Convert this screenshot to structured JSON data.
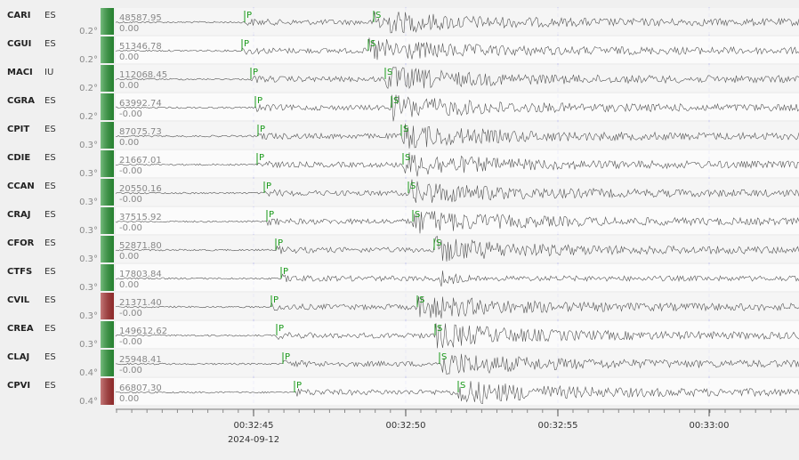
{
  "stations": [
    {
      "code": "CARI",
      "network": "ES",
      "distance": "0.2°",
      "max": "48587.95",
      "min": "0.00",
      "status_color": "#2e9a3a",
      "p": "P",
      "s": "S"
    },
    {
      "code": "CGUI",
      "network": "ES",
      "distance": "0.2°",
      "max": "51346.78",
      "min": "0.00",
      "status_color": "#2e9a3a",
      "p": "P",
      "s": "S"
    },
    {
      "code": "MACI",
      "network": "IU",
      "distance": "0.2°",
      "max": "112068.45",
      "min": "0.00",
      "status_color": "#2e9a3a",
      "p": "P",
      "s": "S"
    },
    {
      "code": "CGRA",
      "network": "ES",
      "distance": "0.2°",
      "max": "63992.74",
      "min": "-0.00",
      "status_color": "#2e9a3a",
      "p": "P",
      "s": "S"
    },
    {
      "code": "CPIT",
      "network": "ES",
      "distance": "0.3°",
      "max": "87075.73",
      "min": "0.00",
      "status_color": "#2e9a3a",
      "p": "P",
      "s": "S"
    },
    {
      "code": "CDIE",
      "network": "ES",
      "distance": "0.3°",
      "max": "21667.01",
      "min": "-0.00",
      "status_color": "#2e9a3a",
      "p": "P",
      "s": "S"
    },
    {
      "code": "CCAN",
      "network": "ES",
      "distance": "0.3°",
      "max": "20550.16",
      "min": "-0.00",
      "status_color": "#2e9a3a",
      "p": "P",
      "s": "S"
    },
    {
      "code": "CRAJ",
      "network": "ES",
      "distance": "0.3°",
      "max": "37515.92",
      "min": "-0.00",
      "status_color": "#2e9a3a",
      "p": "P",
      "s": "S"
    },
    {
      "code": "CFOR",
      "network": "ES",
      "distance": "0.3°",
      "max": "52871.80",
      "min": "0.00",
      "status_color": "#2e9a3a",
      "p": "P",
      "s": "S"
    },
    {
      "code": "CTFS",
      "network": "ES",
      "distance": "0.3°",
      "max": "17803.84",
      "min": "0.00",
      "status_color": "#2e9a3a",
      "p": "P"
    },
    {
      "code": "CVIL",
      "network": "ES",
      "distance": "0.3°",
      "max": "21371.40",
      "min": "-0.00",
      "status_color": "#a83232",
      "p": "P",
      "s": "S"
    },
    {
      "code": "CREA",
      "network": "ES",
      "distance": "0.3°",
      "max": "149612.62",
      "min": "-0.00",
      "status_color": "#2e9a3a",
      "p": "P",
      "s": "S"
    },
    {
      "code": "CLAJ",
      "network": "ES",
      "distance": "0.4°",
      "max": "25948.41",
      "min": "-0.00",
      "status_color": "#2e9a3a",
      "p": "P",
      "s": "S"
    },
    {
      "code": "CPVI",
      "network": "ES",
      "distance": "0.4°",
      "max": "66807.30",
      "min": "0.00",
      "status_color": "#a83232",
      "p": "P",
      "s": "S"
    }
  ],
  "time_axis": {
    "ticks": [
      "00:32:45",
      "00:32:50",
      "00:32:55",
      "00:33:00"
    ],
    "date": "2024-09-12"
  }
}
